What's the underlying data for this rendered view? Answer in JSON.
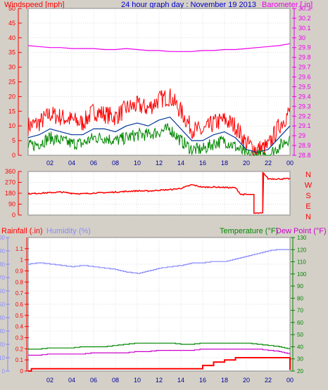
{
  "header": {
    "left_title": "Windspeed [mph]",
    "center_title": "24 hour graph day : November 19 2013",
    "right_title": "Barometer [.in]"
  },
  "colors": {
    "background": "#d4d0c8",
    "plot": "#ffffff",
    "grid": "#bbbbbb",
    "wind": "#ff0000",
    "wind_avg": "#003399",
    "wind_low": "#008800",
    "barometer": "#ee00ee",
    "direction": "#ff0000",
    "humidity": "#8888ff",
    "temperature": "#008800",
    "dewpoint": "#cc00cc",
    "rain": "#ff0000",
    "title_blue": "#0000cc",
    "hour_label": "#000099",
    "axis_red": "#ff0000",
    "axis_blue": "#8888ff",
    "axis_green": "#008800",
    "axis_magenta": "#cc00cc"
  },
  "chart_data": [
    {
      "id": "wind",
      "type": "line",
      "x_unit": "hours",
      "x_range": [
        0,
        24
      ],
      "x_ticks": [
        "02",
        "04",
        "06",
        "08",
        "10",
        "12",
        "14",
        "16",
        "18",
        "20",
        "22",
        "00"
      ],
      "y_left": {
        "label": "Windspeed [mph]",
        "range": [
          0,
          50
        ],
        "ticks": [
          0,
          5,
          10,
          15,
          20,
          25,
          30,
          35,
          40,
          45,
          50
        ]
      },
      "y_right": {
        "label": "Barometer [.in]",
        "range": [
          28.8,
          30.3
        ],
        "ticks": [
          28.8,
          28.9,
          29.0,
          29.1,
          29.2,
          29.3,
          29.4,
          29.5,
          29.6,
          29.7,
          29.8,
          29.9,
          30.0,
          30.1,
          30.2,
          30.3
        ],
        "tick_labels": [
          "28.8",
          "28.9",
          "29",
          "29.1",
          "29.2",
          "29.3",
          "29.4",
          "29.5",
          "29.6",
          "29.7",
          "29.8",
          "29.9",
          "30",
          "30.1",
          "30.2",
          "30.3"
        ]
      },
      "series": [
        {
          "key": "gust",
          "axis": "left",
          "x": [
            0,
            1,
            2,
            3,
            4,
            5,
            6,
            7,
            8,
            9,
            10,
            11,
            12,
            13,
            14,
            15,
            16,
            17,
            18,
            19,
            20,
            21,
            22,
            23,
            24
          ],
          "y": [
            10,
            11,
            14,
            13,
            12,
            11,
            15,
            14,
            13,
            16,
            17,
            16,
            19,
            20,
            15,
            9,
            8,
            11,
            12,
            10,
            4,
            2,
            3,
            10,
            15
          ]
        },
        {
          "key": "average",
          "axis": "left",
          "x": [
            0,
            1,
            2,
            3,
            4,
            5,
            6,
            7,
            8,
            9,
            10,
            11,
            12,
            13,
            14,
            15,
            16,
            17,
            18,
            19,
            20,
            21,
            22,
            23,
            24
          ],
          "y": [
            6,
            7,
            9,
            8,
            7,
            7,
            9,
            9,
            8,
            10,
            11,
            10,
            12,
            13,
            9,
            5,
            5,
            7,
            8,
            6,
            2,
            1,
            2,
            6,
            10
          ]
        },
        {
          "key": "lull",
          "axis": "left",
          "x": [
            0,
            1,
            2,
            3,
            4,
            5,
            6,
            7,
            8,
            9,
            10,
            11,
            12,
            13,
            14,
            15,
            16,
            17,
            18,
            19,
            20,
            21,
            22,
            23,
            24
          ],
          "y": [
            3,
            4,
            6,
            5,
            4,
            4,
            6,
            6,
            5,
            6,
            7,
            7,
            8,
            9,
            5,
            2,
            2,
            4,
            5,
            3,
            0,
            0,
            0,
            3,
            6
          ]
        },
        {
          "key": "barometer",
          "axis": "right",
          "x": [
            0,
            1,
            2,
            3,
            4,
            5,
            6,
            7,
            8,
            9,
            10,
            11,
            12,
            13,
            14,
            15,
            16,
            17,
            18,
            19,
            20,
            21,
            22,
            23,
            24
          ],
          "y": [
            29.92,
            29.91,
            29.9,
            29.9,
            29.89,
            29.89,
            29.89,
            29.88,
            29.88,
            29.89,
            29.88,
            29.87,
            29.87,
            29.86,
            29.86,
            29.86,
            29.87,
            29.87,
            29.88,
            29.88,
            29.89,
            29.9,
            29.91,
            29.92,
            29.94
          ]
        }
      ]
    },
    {
      "id": "direction",
      "type": "line",
      "x_unit": "hours",
      "x_range": [
        0,
        24
      ],
      "y_left": {
        "range": [
          0,
          360
        ],
        "ticks": [
          0,
          90,
          180,
          270,
          360
        ]
      },
      "y_right_labels": [
        "N",
        "W",
        "S",
        "E",
        "N"
      ],
      "series": [
        {
          "key": "wind_direction",
          "x": [
            0,
            1,
            2,
            3,
            4,
            5,
            6,
            7,
            8,
            9,
            10,
            11,
            12,
            13,
            14,
            15,
            16,
            17,
            18,
            19,
            19.5,
            20,
            20.7,
            21.5,
            21.5,
            22,
            23,
            24
          ],
          "y": [
            175,
            180,
            185,
            190,
            180,
            175,
            182,
            185,
            190,
            195,
            200,
            198,
            205,
            210,
            220,
            250,
            230,
            232,
            228,
            225,
            170,
            170,
            15,
            15,
            355,
            300,
            298,
            300
          ]
        }
      ]
    },
    {
      "id": "climate",
      "type": "line",
      "x_unit": "hours",
      "x_range": [
        0,
        24
      ],
      "x_ticks": [
        "02",
        "04",
        "06",
        "08",
        "10",
        "12",
        "14",
        "16",
        "18",
        "20",
        "22",
        "00"
      ],
      "labels": {
        "rain": "Rainfall (.in)",
        "humidity": "Humidity (%)",
        "temperature": "Temperature (°F)",
        "dewpoint": "Dew Point (°F)"
      },
      "y_rain": {
        "range": [
          0,
          1.2
        ],
        "ticks": [
          0,
          0.1,
          0.2,
          0.3,
          0.4,
          0.5,
          0.6,
          0.7,
          0.8,
          0.9,
          1,
          1.1
        ],
        "tick_labels": [
          "0",
          "0.1",
          "0.2",
          "0.3",
          "0.4",
          "0.5",
          "0.6",
          "0.7",
          "0.8",
          "0.9",
          "1",
          "1.1"
        ]
      },
      "y_humidity": {
        "range": [
          0,
          100
        ],
        "ticks": [
          0,
          10,
          20,
          30,
          40,
          50,
          60,
          70,
          80,
          90,
          100
        ]
      },
      "y_temp": {
        "range": [
          20,
          130
        ],
        "ticks": [
          20,
          30,
          40,
          50,
          60,
          70,
          80,
          90,
          100,
          110,
          120,
          130
        ]
      },
      "series": [
        {
          "key": "humidity",
          "axis": "humidity",
          "x": [
            0,
            1,
            2,
            3,
            4,
            5,
            6,
            7,
            8,
            9,
            10,
            11,
            12,
            13,
            14,
            15,
            16,
            17,
            18,
            19,
            20,
            21,
            22,
            23,
            24
          ],
          "y": [
            80,
            81,
            80,
            79,
            78,
            79,
            78,
            77,
            76,
            74,
            73,
            75,
            77,
            78,
            79,
            81,
            81,
            82,
            82,
            84,
            86,
            88,
            90,
            91,
            91
          ]
        },
        {
          "key": "temperature",
          "axis": "temp",
          "x": [
            0,
            1,
            2,
            3,
            4,
            5,
            6,
            7,
            8,
            9,
            10,
            11,
            12,
            13,
            14,
            15,
            16,
            17,
            18,
            19,
            20,
            21,
            22,
            23,
            24
          ],
          "y": [
            38,
            38,
            39,
            39,
            39,
            40,
            40,
            40,
            41,
            42,
            43,
            43,
            43,
            43,
            42,
            42,
            43,
            43,
            43,
            43,
            43,
            42,
            41,
            40,
            38
          ]
        },
        {
          "key": "dewpoint",
          "axis": "temp",
          "x": [
            0,
            1,
            2,
            3,
            4,
            5,
            6,
            7,
            8,
            9,
            10,
            11,
            12,
            13,
            14,
            15,
            16,
            17,
            18,
            19,
            20,
            21,
            22,
            23,
            24
          ],
          "y": [
            33,
            33,
            34,
            34,
            34,
            34,
            35,
            35,
            35,
            35,
            36,
            36,
            37,
            37,
            37,
            37,
            38,
            38,
            38,
            38,
            38,
            38,
            37,
            36,
            34
          ]
        },
        {
          "key": "rain",
          "axis": "rain",
          "x": [
            0,
            0.3,
            1,
            3,
            5,
            7,
            10,
            13,
            15.5,
            16,
            16.5,
            17,
            18,
            19,
            23,
            23.8,
            24
          ],
          "y": [
            0,
            0.02,
            0.02,
            0.02,
            0.02,
            0.02,
            0.02,
            0.02,
            0.02,
            0.05,
            0.05,
            0.08,
            0.1,
            0.12,
            0.12,
            0.12,
            0.01
          ]
        }
      ]
    }
  ]
}
